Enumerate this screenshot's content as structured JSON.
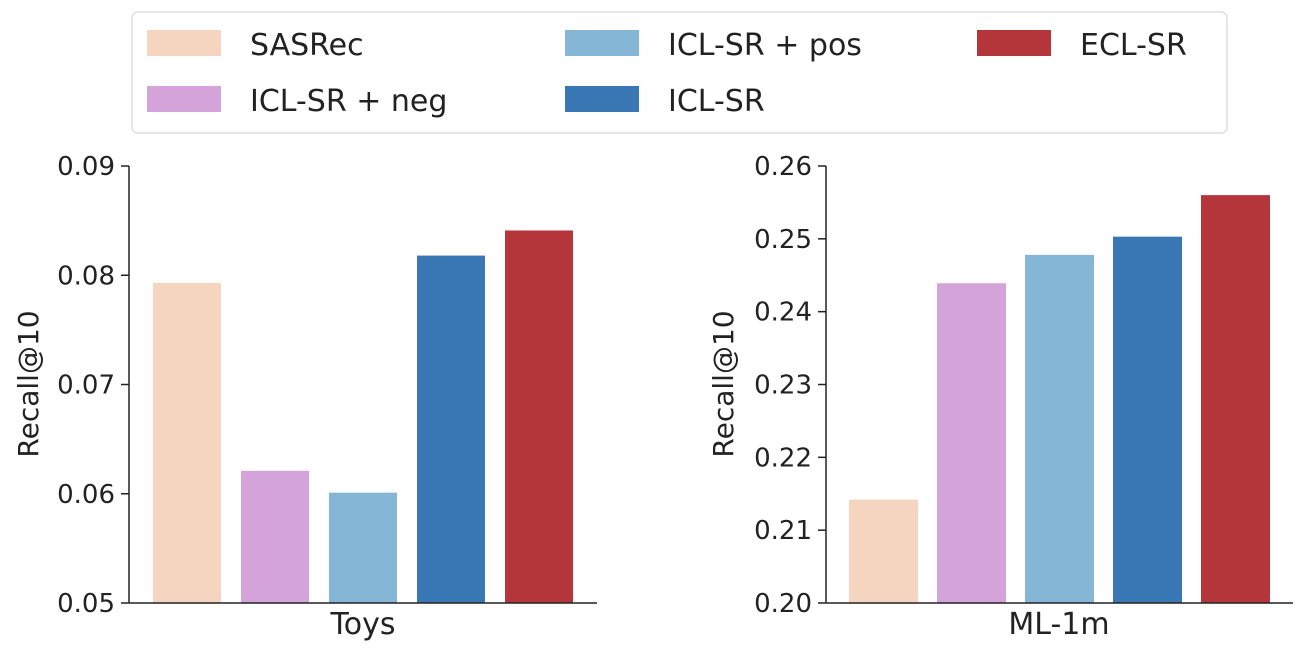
{
  "legend": {
    "items": [
      {
        "name": "SASRec",
        "color": "#f5d5bf"
      },
      {
        "name": "ICL-SR + neg",
        "color": "#d4a3d9"
      },
      {
        "name": "ICL-SR + pos",
        "color": "#86b6d6"
      },
      {
        "name": "ICL-SR",
        "color": "#3a78b5"
      },
      {
        "name": "ECL-SR",
        "color": "#b5363a"
      }
    ]
  },
  "chart_data": [
    {
      "type": "bar",
      "category": "Toys",
      "ylabel": "Recall@10",
      "ylim": [
        0.05,
        0.09
      ],
      "yticks": [
        "0.05",
        "0.06",
        "0.07",
        "0.08",
        "0.09"
      ],
      "series": [
        {
          "name": "SASRec",
          "value": 0.0793
        },
        {
          "name": "ICL-SR + neg",
          "value": 0.0621
        },
        {
          "name": "ICL-SR + pos",
          "value": 0.0601
        },
        {
          "name": "ICL-SR",
          "value": 0.0818
        },
        {
          "name": "ECL-SR",
          "value": 0.0841
        }
      ]
    },
    {
      "type": "bar",
      "category": "ML-1m",
      "ylabel": "Recall@10",
      "ylim": [
        0.2,
        0.26
      ],
      "yticks": [
        "0.20",
        "0.21",
        "0.22",
        "0.23",
        "0.24",
        "0.25",
        "0.26"
      ],
      "series": [
        {
          "name": "SASRec",
          "value": 0.2142
        },
        {
          "name": "ICL-SR + neg",
          "value": 0.2439
        },
        {
          "name": "ICL-SR + pos",
          "value": 0.2478
        },
        {
          "name": "ICL-SR",
          "value": 0.2503
        },
        {
          "name": "ECL-SR",
          "value": 0.256
        }
      ]
    }
  ]
}
